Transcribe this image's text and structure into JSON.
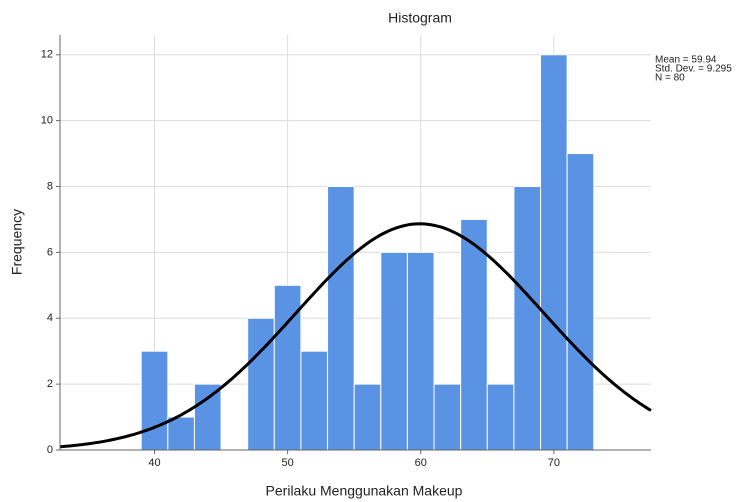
{
  "chart_data": {
    "type": "histogram",
    "title": "Histogram",
    "x_label": "Perilaku Menggunakan Makeup",
    "y_label": "Frequency",
    "bins": [
      39,
      41,
      43,
      45,
      47,
      49,
      51,
      53,
      55,
      57,
      59,
      61,
      63,
      65,
      67,
      69,
      71,
      73
    ],
    "values": [
      3,
      1,
      2,
      0,
      4,
      5,
      3,
      8,
      2,
      6,
      6,
      2,
      7,
      2,
      8,
      12,
      9
    ],
    "color": "#5b93e4",
    "xlim": [
      32.9,
      77.3
    ],
    "xticks": [
      40,
      50,
      60,
      70
    ],
    "ylim": [
      0,
      12.6
    ],
    "yticks": [
      0,
      2,
      4,
      6,
      8,
      10,
      12
    ],
    "grid": true,
    "stats": [
      {
        "value": 59.94,
        "label": "Mean = 59.94"
      },
      {
        "value": 9.295,
        "label": "Std. Dev. = 9.295"
      },
      {
        "value": 80,
        "label": "N = 80"
      }
    ],
    "curve_color": "#000000"
  }
}
